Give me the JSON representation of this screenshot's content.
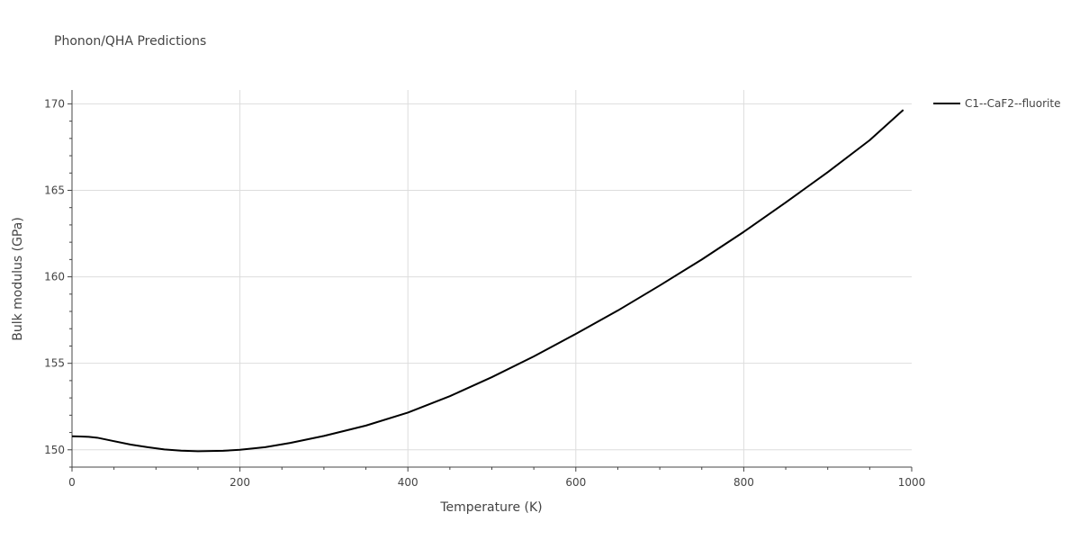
{
  "chart_data": {
    "type": "line",
    "title": "Phonon/QHA Predictions",
    "xlabel": "Temperature (K)",
    "ylabel": "Bulk modulus (GPa)",
    "xlim": [
      0,
      1000
    ],
    "ylim": [
      149,
      170.8
    ],
    "xticks": [
      0,
      200,
      400,
      600,
      800,
      1000
    ],
    "xtick_labels": [
      "0",
      "200",
      "400",
      "600",
      "800",
      "1000"
    ],
    "yticks": [
      150,
      155,
      160,
      165,
      170
    ],
    "ytick_labels": [
      "150",
      "155",
      "160",
      "165",
      "170"
    ],
    "grid": true,
    "legend_position": "top-right",
    "series": [
      {
        "name": "C1--CaF2--fluorite",
        "color": "#000000",
        "x": [
          0,
          10,
          20,
          30,
          50,
          70,
          90,
          110,
          130,
          150,
          180,
          200,
          230,
          260,
          300,
          350,
          400,
          450,
          500,
          550,
          600,
          650,
          700,
          750,
          800,
          850,
          900,
          950,
          990
        ],
        "y": [
          150.78,
          150.77,
          150.75,
          150.7,
          150.5,
          150.3,
          150.15,
          150.02,
          149.95,
          149.92,
          149.94,
          150.0,
          150.15,
          150.4,
          150.8,
          151.4,
          152.15,
          153.1,
          154.2,
          155.4,
          156.7,
          158.05,
          159.5,
          161.0,
          162.6,
          164.3,
          166.05,
          167.9,
          169.65
        ]
      }
    ]
  }
}
